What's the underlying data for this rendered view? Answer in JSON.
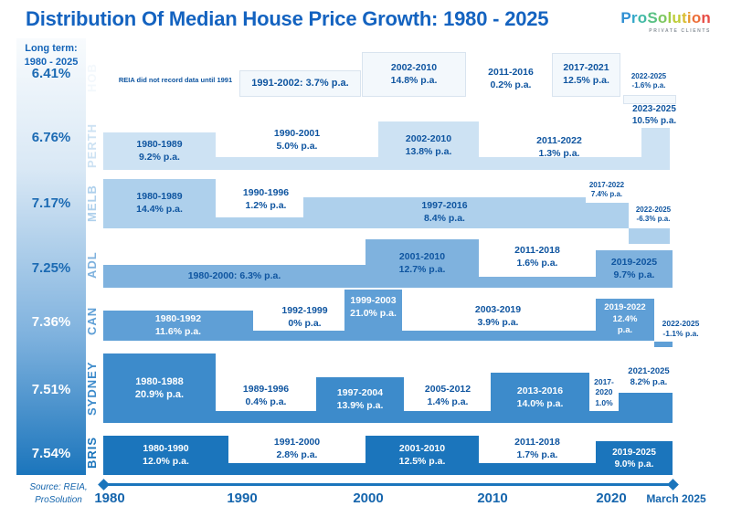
{
  "title": "Distribution Of Median House Price Growth: 1980 - 2025",
  "logo": {
    "name": "ProSolution",
    "letter_colors": [
      "#2f8fd3",
      "#33a7c9",
      "#41b9a5",
      "#59c184",
      "#7cc75f",
      "#9ecc45",
      "#bfcd38",
      "#d9bd31",
      "#e89a32",
      "#ec6f3a",
      "#e74c45"
    ],
    "subtitle": "PRIVATE CLIENTS"
  },
  "long_term": {
    "heading_line1": "Long term:",
    "heading_line2": "1980 - 2025"
  },
  "source": {
    "line1": "Source: REIA,",
    "line2": "ProSolution"
  },
  "axis": {
    "ticks": [
      "1980",
      "1990",
      "2000",
      "2010",
      "2020"
    ],
    "end_label": "March 2025",
    "color": "#1b75bc"
  },
  "chart_data": {
    "type": "timeline-step",
    "unit": "% p.a.",
    "x_range": [
      1980,
      2025.25
    ],
    "rows": [
      {
        "city": "HOB",
        "long_term": "6.41%",
        "long_term_value": 6.41,
        "color": "#f3f8fc",
        "segments": [
          {
            "note": "REIA did not record data until 1991"
          },
          {
            "label": "1991-2002: 3.7% p.a.",
            "start": 1991,
            "end": 2002,
            "value": 3.7
          },
          {
            "period": "2002-2010",
            "rate": "14.8% p.a.",
            "start": 2002,
            "end": 2010,
            "value": 14.8
          },
          {
            "period": "2011-2016",
            "rate": "0.2% p.a.",
            "start": 2011,
            "end": 2016,
            "value": 0.2
          },
          {
            "period": "2017-2021",
            "rate": "12.5% p.a.",
            "start": 2017,
            "end": 2021,
            "value": 12.5
          },
          {
            "period": "2022-2025",
            "rate": "-1.6% p.a.",
            "start": 2022,
            "end": 2025,
            "value": -1.6
          }
        ]
      },
      {
        "city": "PERTH",
        "long_term": "6.76%",
        "long_term_value": 6.76,
        "color": "#cde2f3",
        "segments": [
          {
            "period": "1980-1989",
            "rate": "9.2% p.a.",
            "start": 1980,
            "end": 1989,
            "value": 9.2
          },
          {
            "period": "1990-2001",
            "rate": "5.0% p.a.",
            "start": 1990,
            "end": 2001,
            "value": 5.0
          },
          {
            "period": "2002-2010",
            "rate": "13.8% p.a.",
            "start": 2002,
            "end": 2010,
            "value": 13.8
          },
          {
            "period": "2011-2022",
            "rate": "1.3% p.a.",
            "start": 2011,
            "end": 2022,
            "value": 1.3
          },
          {
            "period": "2023-2025",
            "rate": "10.5% p.a.",
            "start": 2023,
            "end": 2025,
            "value": 10.5
          }
        ]
      },
      {
        "city": "MELB",
        "long_term": "7.17%",
        "long_term_value": 7.17,
        "color": "#aed0ec",
        "segments": [
          {
            "period": "1980-1989",
            "rate": "14.4% p.a.",
            "start": 1980,
            "end": 1989,
            "value": 14.4
          },
          {
            "period": "1990-1996",
            "rate": "1.2% p.a.",
            "start": 1990,
            "end": 1996,
            "value": 1.2
          },
          {
            "period": "1997-2016",
            "rate": "8.4% p.a.",
            "start": 1997,
            "end": 2016,
            "value": 8.4
          },
          {
            "period": "2017-2022",
            "rate": "7.4% p.a.",
            "start": 2017,
            "end": 2022,
            "value": 7.4
          },
          {
            "period": "2022-2025",
            "rate": "-6.3% p.a.",
            "start": 2022,
            "end": 2025,
            "value": -6.3
          }
        ]
      },
      {
        "city": "ADL",
        "long_term": "7.25%",
        "long_term_value": 7.25,
        "color": "#7fb2de",
        "segments": [
          {
            "label": "1980-2000: 6.3% p.a.",
            "start": 1980,
            "end": 2000,
            "value": 6.3
          },
          {
            "period": "2001-2010",
            "rate": "12.7% p.a.",
            "start": 2001,
            "end": 2010,
            "value": 12.7
          },
          {
            "period": "2011-2018",
            "rate": "1.6% p.a.",
            "start": 2011,
            "end": 2018,
            "value": 1.6
          },
          {
            "period": "2019-2025",
            "rate": "9.7% p.a.",
            "start": 2019,
            "end": 2025,
            "value": 9.7
          }
        ]
      },
      {
        "city": "CAN",
        "long_term": "7.36%",
        "long_term_value": 7.36,
        "color": "#5f9fd6",
        "segments": [
          {
            "period": "1980-1992",
            "rate": "11.6% p.a.",
            "start": 1980,
            "end": 1992,
            "value": 11.6
          },
          {
            "period": "1992-1999",
            "rate": "0% p.a.",
            "start": 1992,
            "end": 1999,
            "value": 0
          },
          {
            "period": "1999-2003",
            "rate": "21.0% p.a.",
            "start": 1999,
            "end": 2003,
            "value": 21.0
          },
          {
            "period": "2003-2019",
            "rate": "3.9% p.a.",
            "start": 2003,
            "end": 2019,
            "value": 3.9
          },
          {
            "period": "2019-2022",
            "rate": "12.4% p.a.",
            "start": 2019,
            "end": 2022,
            "value": 12.4
          },
          {
            "period": "2022-2025",
            "rate": "-1.1% p.a.",
            "start": 2022,
            "end": 2025,
            "value": -1.1
          }
        ]
      },
      {
        "city": "SYDNEY",
        "long_term": "7.51%",
        "long_term_value": 7.51,
        "color": "#3d8bcb",
        "segments": [
          {
            "period": "1980-1988",
            "rate": "20.9% p.a.",
            "start": 1980,
            "end": 1988,
            "value": 20.9
          },
          {
            "period": "1989-1996",
            "rate": "0.4% p.a.",
            "start": 1989,
            "end": 1996,
            "value": 0.4
          },
          {
            "period": "1997-2004",
            "rate": "13.9% p.a.",
            "start": 1997,
            "end": 2004,
            "value": 13.9
          },
          {
            "period": "2005-2012",
            "rate": "1.4% p.a.",
            "start": 2005,
            "end": 2012,
            "value": 1.4
          },
          {
            "period": "2013-2016",
            "rate": "14.0% p.a.",
            "start": 2013,
            "end": 2016,
            "value": 14.0
          },
          {
            "period": "2017-2020",
            "rate": "1.0%",
            "start": 2017,
            "end": 2020,
            "value": 1.0
          },
          {
            "period": "2021-2025",
            "rate": "8.2% p.a.",
            "start": 2021,
            "end": 2025,
            "value": 8.2
          }
        ]
      },
      {
        "city": "BRIS",
        "long_term": "7.54%",
        "long_term_value": 7.54,
        "color": "#1b75bc",
        "segments": [
          {
            "period": "1980-1990",
            "rate": "12.0% p.a.",
            "start": 1980,
            "end": 1990,
            "value": 12.0
          },
          {
            "period": "1991-2000",
            "rate": "2.8% p.a.",
            "start": 1991,
            "end": 2000,
            "value": 2.8
          },
          {
            "period": "2001-2010",
            "rate": "12.5% p.a.",
            "start": 2001,
            "end": 2010,
            "value": 12.5
          },
          {
            "period": "2011-2018",
            "rate": "1.7% p.a.",
            "start": 2011,
            "end": 2018,
            "value": 1.7
          },
          {
            "period": "2019-2025",
            "rate": "9.0% p.a.",
            "start": 2019,
            "end": 2025,
            "value": 9.0
          }
        ]
      }
    ]
  }
}
